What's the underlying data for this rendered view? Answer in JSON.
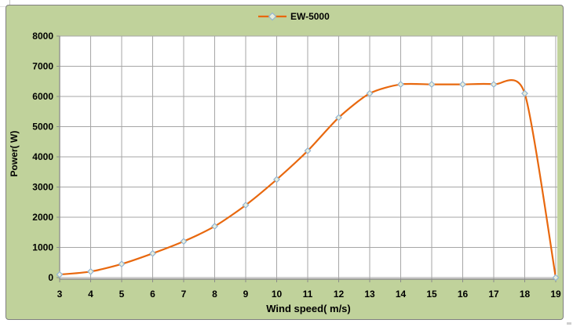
{
  "chart": {
    "background": "#c0d29b",
    "plot_background": "#ffffff",
    "border_color": "#7f7f7f",
    "gridline_color": "#a6a6a6",
    "axis_color": "#8b8b8b",
    "series_color": "#e8680e",
    "marker_stroke": "#92b4d2",
    "marker_fill": "#e9edda",
    "text_color": "#000000"
  },
  "chart_data": {
    "type": "line",
    "title": "",
    "xlabel": "Wind speed( m/s)",
    "ylabel": "Power( W)",
    "xlim": [
      3,
      19
    ],
    "ylim": [
      0,
      8000
    ],
    "x_ticks": [
      3,
      4,
      5,
      6,
      7,
      8,
      9,
      10,
      11,
      12,
      13,
      14,
      15,
      16,
      17,
      18,
      19
    ],
    "y_ticks": [
      0,
      1000,
      2000,
      3000,
      4000,
      5000,
      6000,
      7000,
      8000
    ],
    "grid": true,
    "smooth": true,
    "marker": "diamond",
    "legend_position": "top-center",
    "series": [
      {
        "name": "EW-5000",
        "x": [
          3,
          4,
          5,
          6,
          7,
          8,
          9,
          10,
          11,
          12,
          13,
          14,
          15,
          16,
          17,
          18,
          19
        ],
        "values": [
          100,
          200,
          450,
          800,
          1200,
          1700,
          2400,
          3250,
          4200,
          5300,
          6100,
          6400,
          6400,
          6400,
          6400,
          6100,
          0
        ]
      }
    ]
  }
}
